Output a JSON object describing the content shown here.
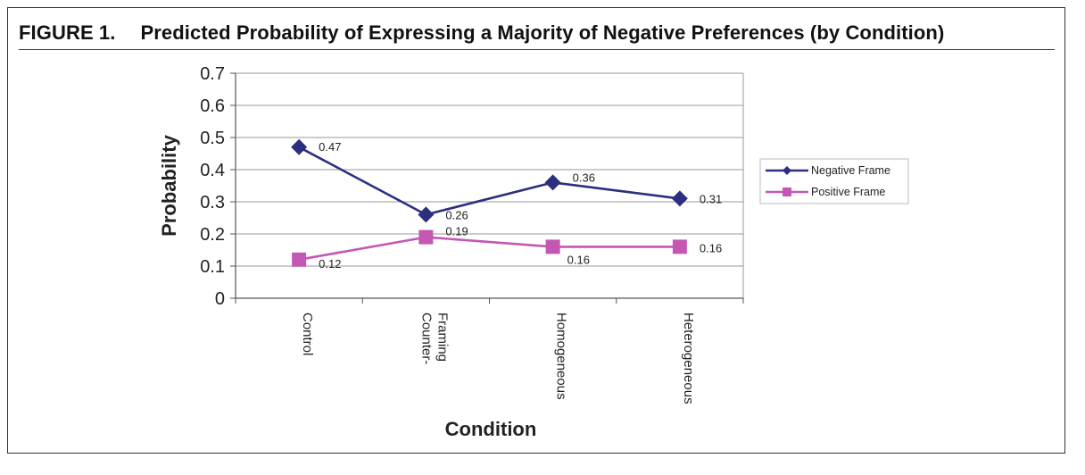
{
  "figure": {
    "label": "FIGURE 1.",
    "title": "Predicted Probability of Expressing a Majority of Negative Preferences (by Condition)"
  },
  "chart_data": {
    "type": "line",
    "title": "Predicted Probability of Expressing a Majority of Negative Preferences (by Condition)",
    "xlabel": "Condition",
    "ylabel": "Probability",
    "categories": [
      [
        "Control"
      ],
      [
        "Counter-",
        "Framing"
      ],
      [
        "Homogeneous"
      ],
      [
        "Heterogeneous"
      ]
    ],
    "ylim": [
      0,
      0.7
    ],
    "yticks": [
      "0",
      "0.1",
      "0.2",
      "0.3",
      "0.4",
      "0.5",
      "0.6",
      "0.7"
    ],
    "grid": true,
    "legend_position": "right",
    "series": [
      {
        "name": "Negative Frame",
        "values": [
          0.47,
          0.26,
          0.36,
          0.31
        ],
        "labels": [
          "0.47",
          "0.26",
          "0.36",
          "0.31"
        ],
        "color": "#2b2f7e",
        "marker": "diamond"
      },
      {
        "name": "Positive Frame",
        "values": [
          0.12,
          0.19,
          0.16,
          0.16
        ],
        "labels": [
          "0.12",
          "0.19",
          "0.16",
          "0.16"
        ],
        "color": "#c457b2",
        "marker": "square"
      }
    ]
  }
}
